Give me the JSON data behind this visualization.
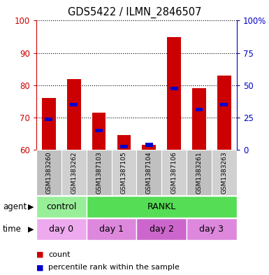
{
  "title": "GDS5422 / ILMN_2846507",
  "samples": [
    "GSM1383260",
    "GSM1383262",
    "GSM1387103",
    "GSM1387105",
    "GSM1387104",
    "GSM1387106",
    "GSM1383261",
    "GSM1383263"
  ],
  "count_values": [
    76,
    82,
    71.5,
    64.5,
    61.5,
    95,
    79,
    83
  ],
  "percentile_values": [
    69.5,
    74,
    66,
    61,
    61.5,
    79,
    72.5,
    74
  ],
  "y_min": 60,
  "y_max": 100,
  "y_ticks_left": [
    60,
    70,
    80,
    90,
    100
  ],
  "right_tick_positions": [
    60,
    70,
    80,
    90,
    100
  ],
  "y_right_labels": [
    "0",
    "25",
    "50",
    "75",
    "100%"
  ],
  "bar_width": 0.55,
  "agent_labels": [
    {
      "text": "control",
      "start": 0,
      "end": 2,
      "color": "#99ee99"
    },
    {
      "text": "RANKL",
      "start": 2,
      "end": 8,
      "color": "#55dd55"
    }
  ],
  "time_labels": [
    {
      "text": "day 0",
      "start": 0,
      "end": 2,
      "color": "#eeaaee"
    },
    {
      "text": "day 1",
      "start": 2,
      "end": 4,
      "color": "#dd88dd"
    },
    {
      "text": "day 2",
      "start": 4,
      "end": 6,
      "color": "#cc66cc"
    },
    {
      "text": "day 3",
      "start": 6,
      "end": 8,
      "color": "#dd88dd"
    }
  ],
  "bar_color": "#cc0000",
  "percentile_color": "#0000cc",
  "bg_color": "#c8c8c8",
  "plot_bg": "#ffffff",
  "left_axis_color": "#cc0000",
  "right_axis_color": "#0000cc",
  "legend_count_label": "count",
  "legend_pct_label": "percentile rank within the sample"
}
